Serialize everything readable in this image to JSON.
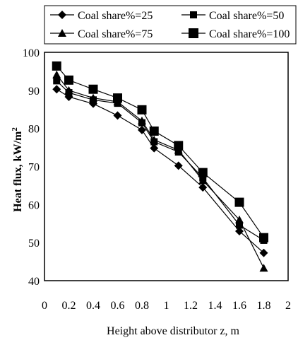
{
  "chart_data": {
    "type": "line",
    "title": "",
    "xlabel": "Height above distributor z, m",
    "ylabel": "Heat flux,  kW/m",
    "ylabel_superscript": "2",
    "xlim": [
      0,
      2
    ],
    "ylim": [
      40,
      100
    ],
    "x_ticks": [
      "0",
      "0.2",
      "0.4",
      "0.6",
      "0.8",
      "1",
      "1.2",
      "1.4",
      "1.6",
      "1.8",
      "2"
    ],
    "y_ticks": [
      "40",
      "50",
      "60",
      "70",
      "80",
      "90",
      "100"
    ],
    "legend_position": "top",
    "colors": {
      "series": "#000000",
      "background": "#ffffff"
    },
    "series": [
      {
        "name": "Coal share%=25",
        "marker": "diamond",
        "x": [
          0.1,
          0.2,
          0.4,
          0.6,
          0.8,
          0.9,
          1.1,
          1.3,
          1.6,
          1.8
        ],
        "values": [
          90.3,
          88.3,
          86.5,
          83.4,
          79.6,
          74.8,
          70.2,
          64.5,
          53.0,
          47.3
        ]
      },
      {
        "name": "Coal share%=50",
        "marker": "square",
        "x": [
          0.1,
          0.2,
          0.4,
          0.6,
          0.8,
          0.9,
          1.1,
          1.3,
          1.6,
          1.8
        ],
        "values": [
          92.5,
          89.4,
          87.5,
          86.6,
          81.5,
          76.5,
          73.8,
          67.0,
          54.6,
          50.6
        ]
      },
      {
        "name": "Coal share%=75",
        "marker": "triangle",
        "x": [
          0.1,
          0.2,
          0.4,
          0.6,
          0.8,
          0.9,
          1.1,
          1.3,
          1.6,
          1.8
        ],
        "values": [
          94.1,
          90.0,
          88.0,
          87.0,
          82.0,
          77.0,
          74.3,
          66.3,
          56.0,
          43.3
        ]
      },
      {
        "name": "Coal share%=100",
        "marker": "big-square",
        "x": [
          0.1,
          0.2,
          0.4,
          0.6,
          0.8,
          0.9,
          1.1,
          1.3,
          1.6,
          1.8
        ],
        "values": [
          96.4,
          92.7,
          90.3,
          88.0,
          84.9,
          79.3,
          75.5,
          68.4,
          60.6,
          51.3
        ]
      }
    ]
  }
}
